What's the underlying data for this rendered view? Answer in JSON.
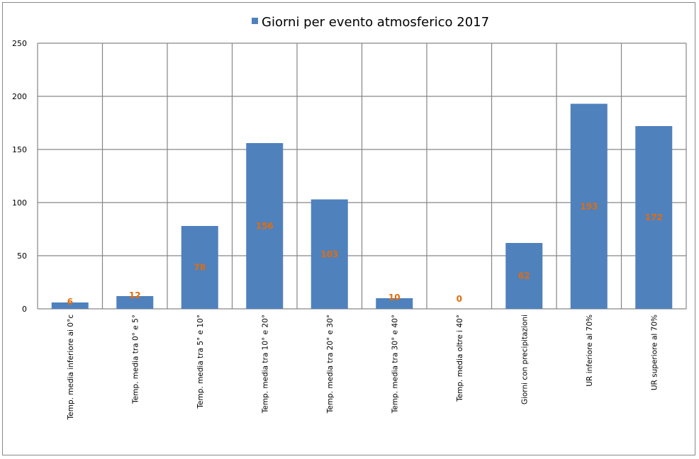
{
  "chart_data": {
    "type": "bar",
    "title": "",
    "legend": {
      "label": "Giorni per evento atmosferico 2017",
      "placement": "top-center"
    },
    "series": [
      {
        "name": "Giorni per evento atmosferico 2017",
        "color": "#4f81bd",
        "values": [
          6,
          12,
          78,
          156,
          103,
          10,
          0,
          62,
          193,
          172
        ]
      }
    ],
    "categories": [
      "Temp. media inferiore ai 0°c",
      "Temp. media tra 0° e 5°",
      "Temp. media tra 5° e 10°",
      "Temp. media tra 10° e 20°",
      "Temp. media tra 20° e 30°",
      "Temp. media tra 30° e 40°",
      "Temp. media oltre i 40°",
      "Giorni con precipitazioni",
      "UR inferiore al 70%",
      "UR superiore al 70%"
    ],
    "data_labels": [
      "6",
      "12",
      "78",
      "156",
      "103",
      "10",
      "0",
      "62",
      "193",
      "172"
    ],
    "data_label_color": "#e36c09",
    "ylim": [
      0,
      250
    ],
    "yticks": [
      0,
      50,
      100,
      150,
      200,
      250
    ],
    "xlabel": "",
    "ylabel": "",
    "grid": true
  }
}
